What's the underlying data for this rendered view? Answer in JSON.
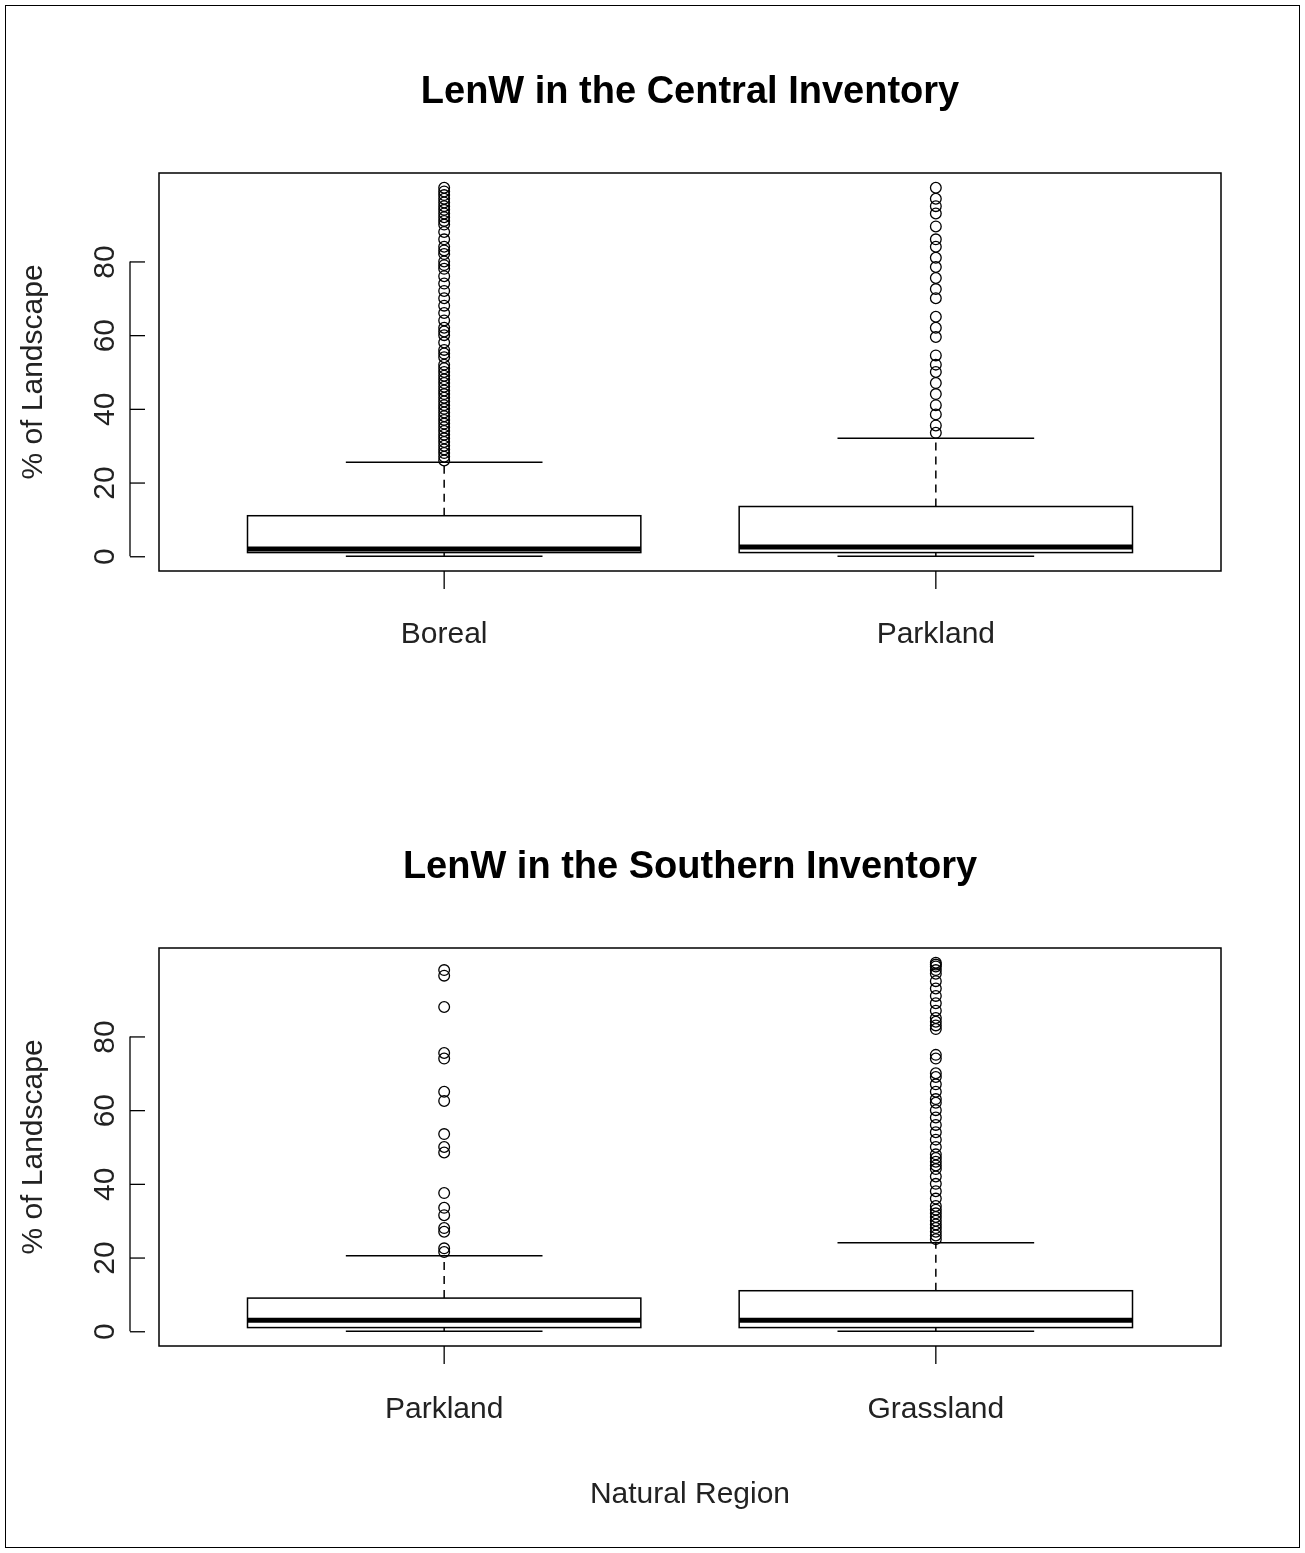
{
  "chart_data": [
    {
      "type": "box",
      "title": "LenW in the Central Inventory",
      "ylabel": "% of Landscape",
      "categories": [
        "Boreal",
        "Parkland"
      ],
      "ylim": [
        -4,
        104
      ],
      "yticks": [
        0,
        20,
        40,
        60,
        80
      ],
      "marker": "circle",
      "line_style": "dashed",
      "boxes": [
        {
          "low": 0,
          "q1": 1,
          "median": 2,
          "q3": 11,
          "high": 25.5,
          "outliers": [
            100,
            99,
            98,
            97,
            96,
            95,
            94,
            93,
            92,
            91,
            90,
            88,
            86,
            84,
            83,
            82,
            80,
            79,
            78,
            76,
            74,
            72,
            70,
            68,
            66,
            64,
            62,
            61,
            60,
            58,
            56,
            55,
            54,
            52,
            51,
            50,
            49,
            48,
            47,
            46,
            45,
            44,
            43,
            42,
            41,
            40,
            39,
            38,
            37,
            36,
            35,
            34,
            33,
            32,
            31,
            30,
            29,
            28,
            27,
            26
          ]
        },
        {
          "low": 0,
          "q1": 1,
          "median": 2.5,
          "q3": 13.5,
          "high": 32,
          "outliers": [
            100,
            97,
            95,
            93,
            89.5,
            86,
            84,
            81,
            78.5,
            75.5,
            72.5,
            70,
            65,
            62,
            59.5,
            54.5,
            52,
            50,
            47,
            44,
            41,
            38.5,
            35.5,
            33.5
          ]
        }
      ]
    },
    {
      "type": "box",
      "title": "LenW in the Southern Inventory",
      "ylabel": "% of Landscape",
      "xlabel": "Natural Region",
      "categories": [
        "Parkland",
        "Grassland"
      ],
      "ylim": [
        -4,
        104
      ],
      "yticks": [
        0,
        20,
        40,
        60,
        80
      ],
      "marker": "circle",
      "line_style": "dashed",
      "boxes": [
        {
          "low": 0,
          "q1": 1,
          "median": 3,
          "q3": 9,
          "high": 20.5,
          "outliers": [
            98,
            96.5,
            88,
            75.5,
            74,
            65,
            62.5,
            53.5,
            50,
            48.5,
            37.5,
            33.5,
            31.5,
            28,
            27,
            22.5,
            21.5
          ]
        },
        {
          "low": 0,
          "q1": 1,
          "median": 3,
          "q3": 11,
          "high": 24,
          "outliers": [
            100,
            99.5,
            99,
            98,
            97,
            95,
            93,
            91,
            89,
            87,
            85,
            84,
            83,
            82,
            75,
            74,
            70,
            69,
            67,
            65,
            63,
            62,
            60,
            58,
            56,
            54,
            52,
            50,
            48,
            47,
            46,
            45,
            44,
            42,
            40,
            38,
            36,
            34,
            33,
            32,
            31,
            30,
            29,
            28,
            27,
            26,
            25
          ]
        }
      ]
    }
  ]
}
